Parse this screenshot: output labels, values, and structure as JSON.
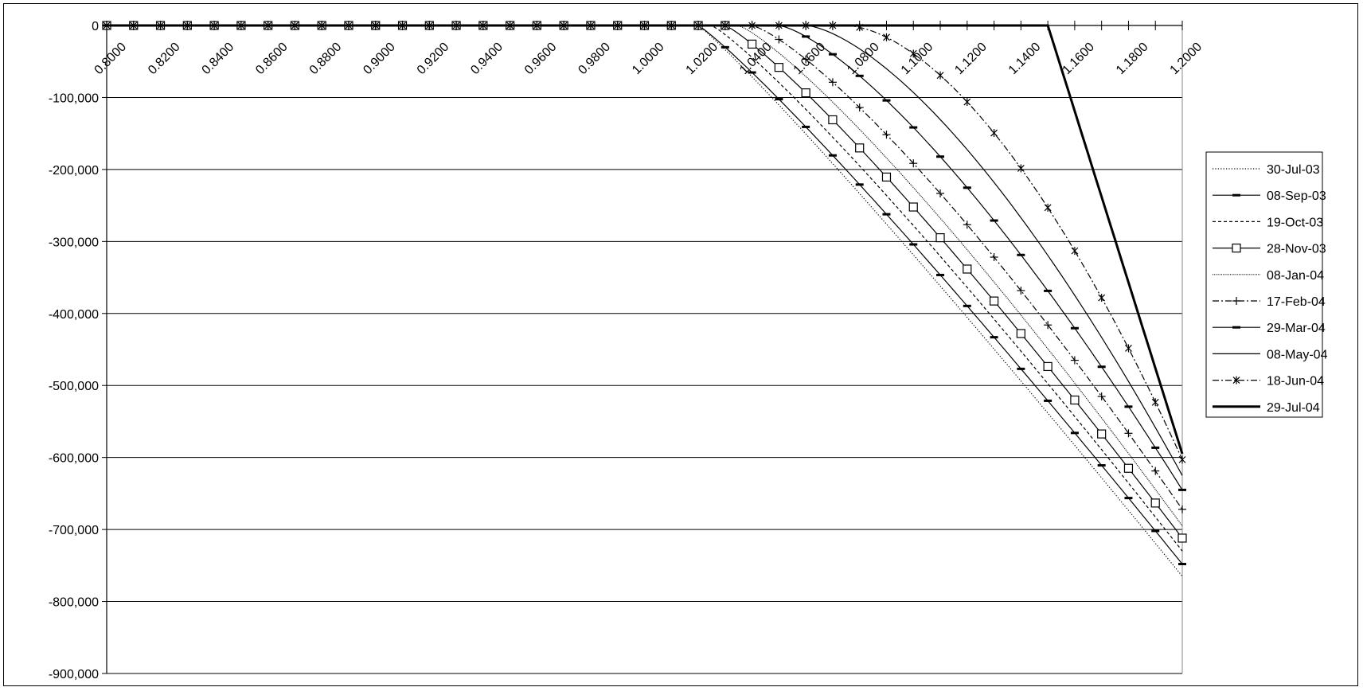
{
  "chart_data": {
    "type": "line",
    "title": "",
    "xlabel": "",
    "ylabel": "",
    "x": [
      0.8,
      0.81,
      0.82,
      0.83,
      0.84,
      0.85,
      0.86,
      0.87,
      0.88,
      0.89,
      0.9,
      0.91,
      0.92,
      0.93,
      0.94,
      0.95,
      0.96,
      0.97,
      0.98,
      0.99,
      1.0,
      1.01,
      1.02,
      1.03,
      1.04,
      1.05,
      1.06,
      1.07,
      1.08,
      1.09,
      1.1,
      1.11,
      1.12,
      1.13,
      1.14,
      1.15,
      1.16,
      1.17,
      1.18,
      1.19,
      1.2
    ],
    "x_tick_labels": [
      "0.8000",
      "0.8200",
      "0.8400",
      "0.8600",
      "0.8800",
      "0.9000",
      "0.9200",
      "0.9400",
      "0.9600",
      "0.9800",
      "1.0000",
      "1.0200",
      "1.0400",
      "1.0600",
      "1.0800",
      "1.1000",
      "1.1200",
      "1.1400",
      "1.1600",
      "1.1800",
      "1.2000"
    ],
    "y_tick_labels": [
      "0",
      "-100,000",
      "-200,000",
      "-300,000",
      "-400,000",
      "-500,000",
      "-600,000",
      "-700,000",
      "-800,000",
      "-900,000"
    ],
    "ylim": [
      -900000,
      0
    ],
    "grid": "horizontal",
    "legend_position": "right",
    "series": [
      {
        "name": "30-Jul-03",
        "style": "dotted",
        "marker": "none",
        "k": 1.02,
        "p": 1.08
      },
      {
        "name": "08-Sep-03",
        "style": "solid",
        "marker": "dash",
        "k": 1.02,
        "p": 1.11
      },
      {
        "name": "19-Oct-03",
        "style": "dashed",
        "marker": "none",
        "k": 1.025,
        "p": 1.14
      },
      {
        "name": "28-Nov-03",
        "style": "solid",
        "marker": "square",
        "k": 1.03,
        "p": 1.17
      },
      {
        "name": "08-Jan-04",
        "style": "fine-dotted",
        "marker": "none",
        "k": 1.035,
        "p": 1.21
      },
      {
        "name": "17-Feb-04",
        "style": "dashdot",
        "marker": "plus",
        "k": 1.04,
        "p": 1.28
      },
      {
        "name": "29-Mar-04",
        "style": "solid",
        "marker": "dash",
        "k": 1.05,
        "p": 1.38
      },
      {
        "name": "08-May-04",
        "style": "solid",
        "marker": "none",
        "k": 1.06,
        "p": 1.52
      },
      {
        "name": "18-Jun-04",
        "style": "dashdot",
        "marker": "star",
        "k": 1.075,
        "p": 1.7
      },
      {
        "name": "29-Jul-04",
        "style": "thick",
        "marker": "none",
        "k": 1.15,
        "p": 1.0
      }
    ],
    "series_endpoints": {
      "30-Jul-03": -765000,
      "08-Sep-03": -748000,
      "19-Oct-03": -730000,
      "28-Nov-03": -712000,
      "08-Jan-04": -695000,
      "17-Feb-04": -672000,
      "29-Mar-04": -645000,
      "08-May-04": -625000,
      "18-Jun-04": -603000,
      "29-Jul-04": -595000
    }
  }
}
